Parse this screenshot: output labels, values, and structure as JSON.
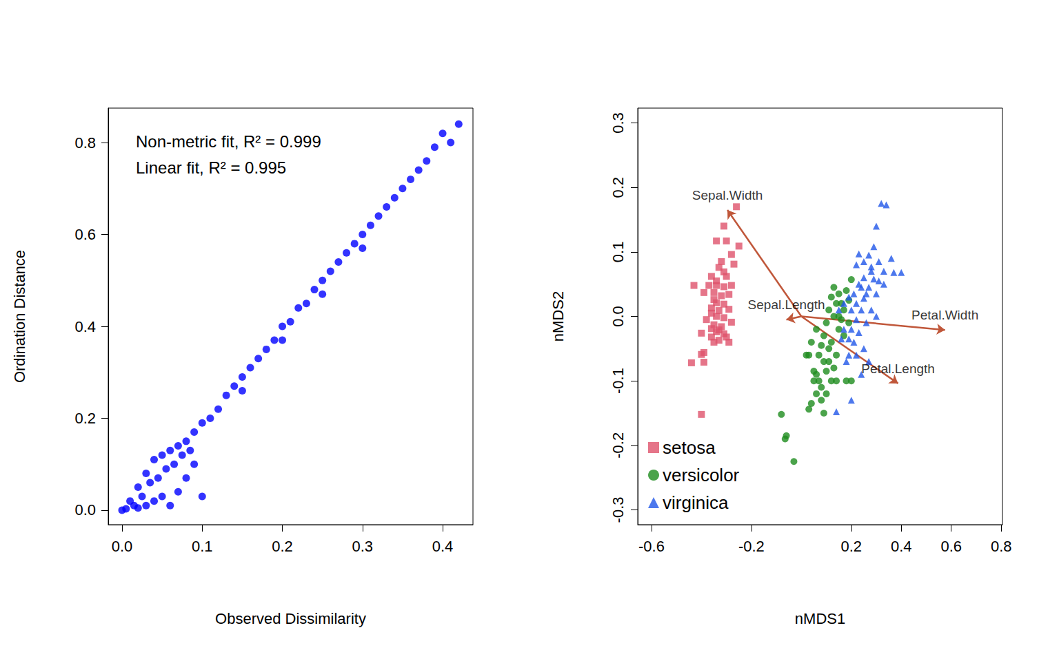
{
  "chart_data": [
    {
      "type": "scatter",
      "x_label": "Observed Dissimilarity",
      "y_label": "Ordination Distance",
      "annotations": [
        "Non-metric fit, R² = 0.999",
        "Linear fit, R² = 0.995"
      ],
      "color": "#0000ff",
      "marker": "circle",
      "x": [
        0,
        0.005,
        0.01,
        0.015,
        0.02,
        0.02,
        0.025,
        0.03,
        0.03,
        0.035,
        0.04,
        0.04,
        0.045,
        0.05,
        0.05,
        0.055,
        0.06,
        0.06,
        0.065,
        0.07,
        0.07,
        0.075,
        0.08,
        0.08,
        0.085,
        0.09,
        0.09,
        0.1,
        0.1,
        0.11,
        0.12,
        0.13,
        0.14,
        0.15,
        0.16,
        0.17,
        0.18,
        0.19,
        0.2,
        0.21,
        0.22,
        0.23,
        0.24,
        0.25,
        0.26,
        0.27,
        0.28,
        0.29,
        0.3,
        0.31,
        0.32,
        0.33,
        0.34,
        0.35,
        0.36,
        0.37,
        0.38,
        0.39,
        0.4,
        0.41,
        0.42,
        0.3,
        0.25,
        0.2,
        0.15
      ],
      "values": [
        0,
        0.003,
        0.02,
        0.01,
        0.05,
        0.005,
        0.03,
        0.08,
        0.01,
        0.06,
        0.11,
        0.02,
        0.07,
        0.12,
        0.03,
        0.09,
        0.13,
        0.01,
        0.1,
        0.14,
        0.04,
        0.12,
        0.15,
        0.07,
        0.13,
        0.17,
        0.1,
        0.03,
        0.19,
        0.2,
        0.22,
        0.25,
        0.27,
        0.29,
        0.31,
        0.33,
        0.35,
        0.37,
        0.4,
        0.41,
        0.44,
        0.45,
        0.48,
        0.5,
        0.52,
        0.54,
        0.56,
        0.58,
        0.6,
        0.62,
        0.64,
        0.66,
        0.68,
        0.7,
        0.72,
        0.74,
        0.76,
        0.79,
        0.82,
        0.8,
        0.84,
        0.57,
        0.47,
        0.37,
        0.26
      ],
      "xlim": [
        -0.0172,
        0.4378
      ],
      "xticks": [
        {
          "value": 0,
          "label": "0.0"
        },
        0.1,
        0.2,
        0.3,
        0.4
      ],
      "ylim": [
        -0.0315,
        0.875
      ],
      "yticks": [
        {
          "value": 0,
          "label": "0.0"
        },
        0.2,
        0.4,
        0.6,
        0.8
      ],
      "grid": false
    },
    {
      "type": "scatter",
      "x_label": "nMDS1",
      "y_label": "nMDS2",
      "legend": "bottom-left",
      "xlim": [
        -0.655,
        0.805
      ],
      "xticks": [
        -0.6,
        -0.2,
        0.2,
        0.4,
        0.6,
        0.8
      ],
      "ylim": [
        -0.323,
        0.323
      ],
      "yticks": [
        -0.3,
        -0.2,
        -0.1,
        {
          "value": 0,
          "label": "0.0"
        },
        0.1,
        0.2,
        0.3
      ],
      "grid": false,
      "series": [
        {
          "name": "setosa",
          "color": "#df536b",
          "marker": "square",
          "x": [
            -0.26,
            -0.31,
            -0.34,
            -0.3,
            -0.25,
            -0.28,
            -0.32,
            -0.27,
            -0.33,
            -0.31,
            -0.36,
            -0.43,
            -0.37,
            -0.34,
            -0.31,
            -0.28,
            -0.39,
            -0.35,
            -0.32,
            -0.29,
            -0.34,
            -0.31,
            -0.36,
            -0.29,
            -0.34,
            -0.31,
            -0.38,
            -0.28,
            -0.35,
            -0.32,
            -0.4,
            -0.34,
            -0.31,
            -0.36,
            -0.33,
            -0.35,
            -0.29,
            -0.39,
            -0.44,
            -0.39,
            -0.4,
            -0.4,
            -0.33,
            -0.36,
            -0.34,
            -0.3,
            -0.35,
            -0.33,
            -0.3,
            -0.36
          ],
          "values": [
            0.17,
            0.14,
            0.117,
            0.117,
            0.109,
            0.096,
            0.085,
            0.081,
            0.076,
            0.069,
            0.062,
            0.048,
            0.048,
            0.048,
            0.046,
            0.048,
            0.037,
            0.037,
            0.032,
            0.034,
            0.021,
            0.019,
            0.013,
            0.011,
            0.0,
            -0.002,
            -0.005,
            -0.009,
            -0.013,
            -0.016,
            -0.026,
            -0.024,
            -0.027,
            -0.032,
            -0.037,
            -0.04,
            -0.04,
            -0.056,
            -0.072,
            -0.071,
            -0.059,
            -0.152,
            -0.021,
            0.005,
            0.055,
            0.062,
            0.026,
            0.009,
            -0.032,
            -0.019
          ]
        },
        {
          "name": "versicolor",
          "color": "#1e8c1e",
          "marker": "circle",
          "x": [
            -0.03,
            -0.08,
            -0.06,
            -0.065,
            0.03,
            0.09,
            0.04,
            0.12,
            0.14,
            0.06,
            0.08,
            0.07,
            0.1,
            0.06,
            0.09,
            0.03,
            0.07,
            0.11,
            0.04,
            0.08,
            0.09,
            0.06,
            0.12,
            0.15,
            0.1,
            0.13,
            0.16,
            0.11,
            0.14,
            0.17,
            0.19,
            0.12,
            0.15,
            0.18,
            0.2,
            0.13,
            0.16,
            0.19,
            0.17,
            0.14,
            0.11,
            0.05,
            0.08,
            0.1,
            0.13,
            0.05,
            0.15,
            0.18,
            0.2,
            0.02
          ],
          "values": [
            -0.225,
            -0.152,
            -0.185,
            -0.19,
            -0.144,
            -0.15,
            -0.135,
            -0.1,
            -0.1,
            -0.12,
            -0.11,
            -0.1,
            -0.085,
            -0.09,
            -0.07,
            -0.06,
            -0.06,
            -0.05,
            -0.04,
            -0.045,
            -0.03,
            -0.02,
            -0.04,
            -0.02,
            -0.01,
            0.0,
            -0.005,
            0.01,
            0.02,
            0.01,
            0.025,
            0.03,
            0.035,
            0.04,
            0.057,
            0.045,
            0.02,
            -0.01,
            -0.03,
            -0.06,
            -0.07,
            -0.085,
            -0.13,
            -0.12,
            -0.08,
            -0.1,
            0.0,
            -0.1,
            -0.1,
            -0.06
          ]
        },
        {
          "name": "virginica",
          "color": "#2156e8",
          "marker": "triangle",
          "x": [
            0.32,
            0.34,
            0.3,
            0.29,
            0.23,
            0.27,
            0.25,
            0.31,
            0.22,
            0.28,
            0.36,
            0.33,
            0.37,
            0.4,
            0.25,
            0.29,
            0.31,
            0.23,
            0.27,
            0.21,
            0.3,
            0.25,
            0.19,
            0.24,
            0.2,
            0.28,
            0.22,
            0.15,
            0.26,
            0.2,
            0.17,
            0.23,
            0.19,
            0.16,
            0.21,
            0.25,
            0.22,
            0.19,
            0.24,
            0.2,
            0.18,
            0.27,
            0.14,
            0.26,
            0.33,
            0.24,
            0.28,
            0.22,
            0.17,
            0.3
          ],
          "values": [
            0.175,
            0.173,
            0.14,
            0.108,
            0.097,
            0.095,
            0.085,
            0.085,
            0.08,
            0.077,
            0.09,
            0.07,
            0.068,
            0.068,
            0.06,
            0.058,
            0.055,
            0.05,
            0.045,
            0.035,
            0.035,
            0.028,
            0.03,
            0.01,
            0.01,
            0.01,
            -0.005,
            0.01,
            -0.01,
            -0.02,
            -0.02,
            -0.025,
            -0.035,
            -0.035,
            -0.04,
            -0.05,
            -0.06,
            -0.06,
            -0.09,
            -0.13,
            -0.07,
            -0.07,
            -0.148,
            0.035,
            0.05,
            0.045,
            0.07,
            0.02,
            0.02,
            0.0
          ]
        }
      ],
      "arrows": {
        "color": "#c0573a",
        "origin": [
          0,
          0
        ],
        "labels": [
          "Sepal.Length",
          "Sepal.Width",
          "Petal.Length",
          "Petal.Width"
        ],
        "x": [
          -0.06,
          -0.296,
          0.387,
          0.575
        ],
        "y": [
          -0.005,
          0.165,
          -0.104,
          -0.021
        ]
      }
    }
  ]
}
